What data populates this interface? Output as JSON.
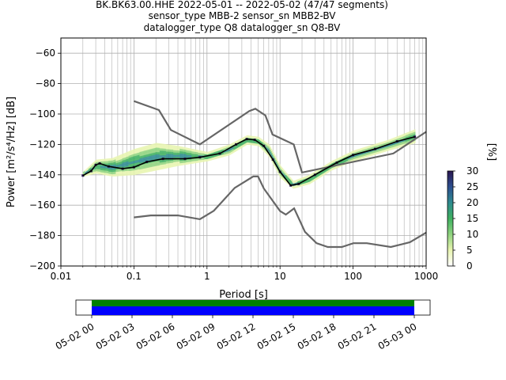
{
  "title_lines": [
    "BK.BK63.00.HHE   2022-05-01 -- 2022-05-02  (47/47 segments)",
    "sensor_type MBB-2 sensor_sn MBB2-BV",
    "datalogger_type Q8 datalogger_sn Q8-BV"
  ],
  "chart_data": [
    {
      "type": "heatmap",
      "xlabel": "Period [s]",
      "ylabel": "Power [m²/s⁴/Hz] [dB]",
      "x_scale": "log",
      "xlim": [
        0.01,
        1000
      ],
      "ylim": [
        -200,
        -50
      ],
      "x_ticks": [
        0.01,
        0.1,
        1,
        10,
        100,
        1000
      ],
      "x_tick_labels": [
        "0.01",
        "0.1",
        "1",
        "10",
        "100",
        "1000"
      ],
      "y_ticks": [
        -200,
        -180,
        -160,
        -140,
        -120,
        -100,
        -80,
        -60
      ],
      "y_tick_labels": [
        "−200",
        "−180",
        "−160",
        "−140",
        "−120",
        "−100",
        "−80",
        "−60"
      ],
      "grid": true,
      "colorbar": {
        "label": "[%]",
        "range": [
          0,
          30
        ],
        "ticks": [
          0,
          5,
          10,
          15,
          20,
          25,
          30
        ],
        "tick_labels": [
          "0",
          "5",
          "10",
          "15",
          "20",
          "25",
          "30"
        ],
        "colors": [
          "#ffffff",
          "#e8f4b0",
          "#8fd37f",
          "#3fb060",
          "#2e8b8f",
          "#2c4f8f",
          "#2a1650"
        ]
      },
      "high_noise_model": [
        [
          0.1,
          -91.5
        ],
        [
          0.22,
          -97.4
        ],
        [
          0.32,
          -110.5
        ],
        [
          0.8,
          -120
        ],
        [
          3.8,
          -98
        ],
        [
          4.6,
          -96.5
        ],
        [
          6.3,
          -101
        ],
        [
          7.9,
          -113.5
        ],
        [
          15.4,
          -120
        ],
        [
          20,
          -138.5
        ],
        [
          354.8,
          -126
        ],
        [
          10000,
          -80
        ]
      ],
      "low_noise_model": [
        [
          0.1,
          -168
        ],
        [
          0.17,
          -166.7
        ],
        [
          0.4,
          -166.7
        ],
        [
          0.8,
          -169.2
        ],
        [
          1.24,
          -163.7
        ],
        [
          2.4,
          -148.6
        ],
        [
          4.3,
          -141.1
        ],
        [
          5.0,
          -141.1
        ],
        [
          6.0,
          -149
        ],
        [
          10.0,
          -163.8
        ],
        [
          12.0,
          -166.2
        ],
        [
          15.6,
          -162.1
        ],
        [
          21.9,
          -177.5
        ],
        [
          31.6,
          -185
        ],
        [
          45,
          -187.5
        ],
        [
          70,
          -187.5
        ],
        [
          101,
          -185
        ],
        [
          154,
          -185
        ],
        [
          328,
          -187.5
        ],
        [
          600,
          -184.4
        ],
        [
          1000,
          -178
        ]
      ],
      "mode_curve": [
        [
          0.02,
          -140.5
        ],
        [
          0.026,
          -137.5
        ],
        [
          0.03,
          -133.5
        ],
        [
          0.034,
          -132.5
        ],
        [
          0.045,
          -134.5
        ],
        [
          0.07,
          -136
        ],
        [
          0.1,
          -135
        ],
        [
          0.15,
          -131.5
        ],
        [
          0.25,
          -129.5
        ],
        [
          0.5,
          -129.5
        ],
        [
          0.8,
          -128.5
        ],
        [
          1.5,
          -126
        ],
        [
          2.5,
          -120
        ],
        [
          3.5,
          -116.5
        ],
        [
          4.5,
          -117
        ],
        [
          6,
          -121
        ],
        [
          8,
          -130
        ],
        [
          10,
          -138
        ],
        [
          14,
          -147
        ],
        [
          18,
          -146
        ],
        [
          30,
          -140
        ],
        [
          60,
          -132
        ],
        [
          100,
          -127
        ],
        [
          200,
          -123
        ],
        [
          400,
          -118
        ],
        [
          700,
          -115
        ]
      ],
      "psd_band": [
        [
          0.02,
          -141,
          -138
        ],
        [
          0.03,
          -139,
          -130
        ],
        [
          0.05,
          -141,
          -129
        ],
        [
          0.1,
          -140,
          -123
        ],
        [
          0.2,
          -137,
          -119
        ],
        [
          0.4,
          -134,
          -121
        ],
        [
          1,
          -131,
          -125
        ],
        [
          2,
          -127,
          -120
        ],
        [
          3.5,
          -120,
          -114
        ],
        [
          5,
          -121,
          -115
        ],
        [
          7,
          -128,
          -120
        ],
        [
          10,
          -142,
          -134
        ],
        [
          15,
          -149,
          -144
        ],
        [
          25,
          -146,
          -140
        ],
        [
          50,
          -137,
          -131
        ],
        [
          100,
          -131,
          -124
        ],
        [
          300,
          -124,
          -117
        ],
        [
          700,
          -119,
          -110
        ]
      ]
    },
    {
      "type": "timeline",
      "x_tick_labels": [
        "05-02 00",
        "05-02 03",
        "05-02 06",
        "05-02 09",
        "05-02 12",
        "05-02 15",
        "05-02 18",
        "05-02 21",
        "05-03 00"
      ],
      "data_coverage_color": "#008000",
      "psd_coverage_color": "#0000ff"
    }
  ]
}
